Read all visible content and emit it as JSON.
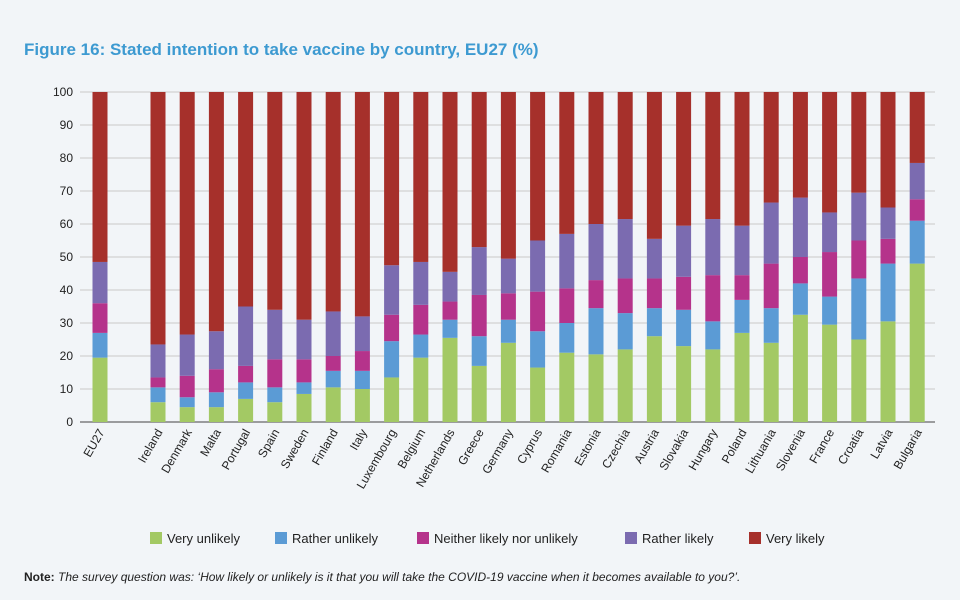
{
  "title": "Figure 16: Stated intention to take vaccine by country, EU27 (%)",
  "note": {
    "label": "Note:",
    "text": "The survey question was: ‘How likely or unlikely is it that you will take the COVID-19 vaccine when it becomes available to you?’."
  },
  "colors": {
    "very_unlikely": "#a3c964",
    "rather_unlikely": "#5b9bd5",
    "neither": "#b5338b",
    "rather_likely": "#7b6bb0",
    "very_likely": "#a6302b"
  },
  "chart_data": {
    "type": "bar",
    "stacked": true,
    "title": "Figure 16: Stated intention to take vaccine by country, EU27 (%)",
    "xlabel": "",
    "ylabel": "",
    "ylim": [
      0,
      100
    ],
    "yticks": [
      0,
      10,
      20,
      30,
      40,
      50,
      60,
      70,
      80,
      90,
      100
    ],
    "grid": true,
    "legend": "bottom",
    "categories": [
      "EU27",
      "Ireland",
      "Denmark",
      "Malta",
      "Portugal",
      "Spain",
      "Sweden",
      "Finland",
      "Italy",
      "Luxembourg",
      "Belgium",
      "Netherlands",
      "Greece",
      "Germany",
      "Cyprus",
      "Romania",
      "Estonia",
      "Czechia",
      "Austria",
      "Slovakia",
      "Hungary",
      "Poland",
      "Lithuania",
      "Slovenia",
      "France",
      "Croatia",
      "Latvia",
      "Bulgaria"
    ],
    "series": [
      {
        "name": "Very unlikely",
        "color": "#a3c964",
        "values": [
          19.5,
          6,
          4.5,
          4.5,
          7,
          6,
          8.5,
          10.5,
          10,
          13.5,
          19.5,
          25.5,
          17,
          24,
          16.5,
          21,
          20.5,
          22,
          26,
          23,
          22,
          27,
          24,
          32.5,
          29.5,
          25,
          30.5,
          48
        ]
      },
      {
        "name": "Rather unlikely",
        "color": "#5b9bd5",
        "values": [
          7.5,
          4.5,
          3,
          4.5,
          5,
          4.5,
          3.5,
          5,
          5.5,
          11,
          7,
          5.5,
          9,
          7,
          11,
          9,
          14,
          11,
          8.5,
          11,
          8.5,
          10,
          10.5,
          9.5,
          8.5,
          18.5,
          17.5,
          13
        ]
      },
      {
        "name": "Neither likely nor unlikely",
        "color": "#b5338b",
        "values": [
          9,
          3,
          6.5,
          7,
          5,
          8.5,
          7,
          4.5,
          6,
          8,
          9,
          5.5,
          12.5,
          8,
          12,
          10.5,
          8.5,
          10.5,
          9,
          10,
          14,
          7.5,
          13.5,
          8,
          13.5,
          11.5,
          7.5,
          6.5
        ]
      },
      {
        "name": "Rather likely",
        "color": "#7b6bb0",
        "values": [
          12.5,
          10,
          12.5,
          11.5,
          18,
          15,
          12,
          13.5,
          10.5,
          15,
          13,
          9,
          14.5,
          10.5,
          15.5,
          16.5,
          17,
          18,
          12,
          15.5,
          17,
          15,
          18.5,
          18,
          12,
          14.5,
          9.5,
          11
        ]
      },
      {
        "name": "Very likely",
        "color": "#a6302b",
        "values": [
          51.5,
          76.5,
          73.5,
          72.5,
          65,
          66,
          69,
          66.5,
          68,
          52.5,
          51.5,
          54.5,
          47,
          50.5,
          45,
          43,
          40,
          38.5,
          44.5,
          40.5,
          38.5,
          40.5,
          33.5,
          32,
          36.5,
          30.5,
          35,
          21.5
        ]
      }
    ]
  }
}
